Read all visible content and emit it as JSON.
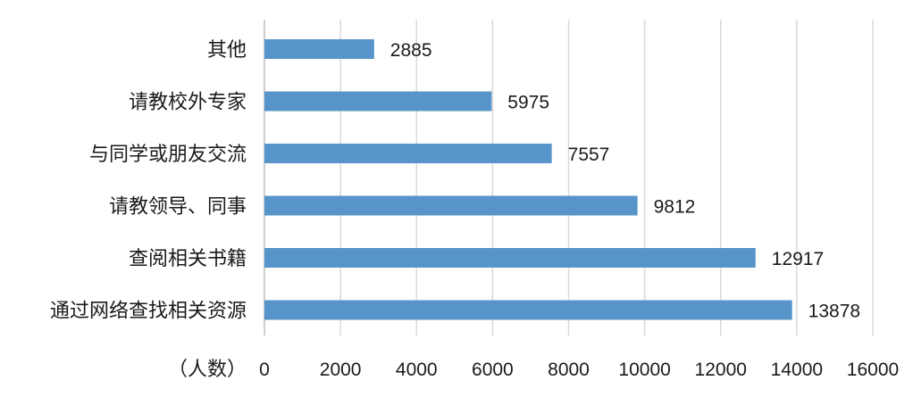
{
  "chart_data": {
    "type": "bar",
    "orientation": "horizontal",
    "categories": [
      "其他",
      "请教校外专家",
      "与同学或朋友交流",
      "请教领导、同事",
      "查阅相关书籍",
      "通过网络查找相关资源"
    ],
    "values": [
      2885,
      5975,
      7557,
      9812,
      12917,
      13878
    ],
    "data_labels": [
      "2885",
      "5975",
      "7557",
      "9812",
      "12917",
      "13878"
    ],
    "xlabel": "（人数）",
    "xlim": [
      0,
      16000
    ],
    "x_ticks": [
      0,
      2000,
      4000,
      6000,
      8000,
      10000,
      12000,
      14000,
      16000
    ],
    "x_tick_labels": [
      "0",
      "2000",
      "4000",
      "6000",
      "8000",
      "10000",
      "12000",
      "14000",
      "16000"
    ],
    "grid": true,
    "legend": "none",
    "bar_color": "#5694c9"
  }
}
